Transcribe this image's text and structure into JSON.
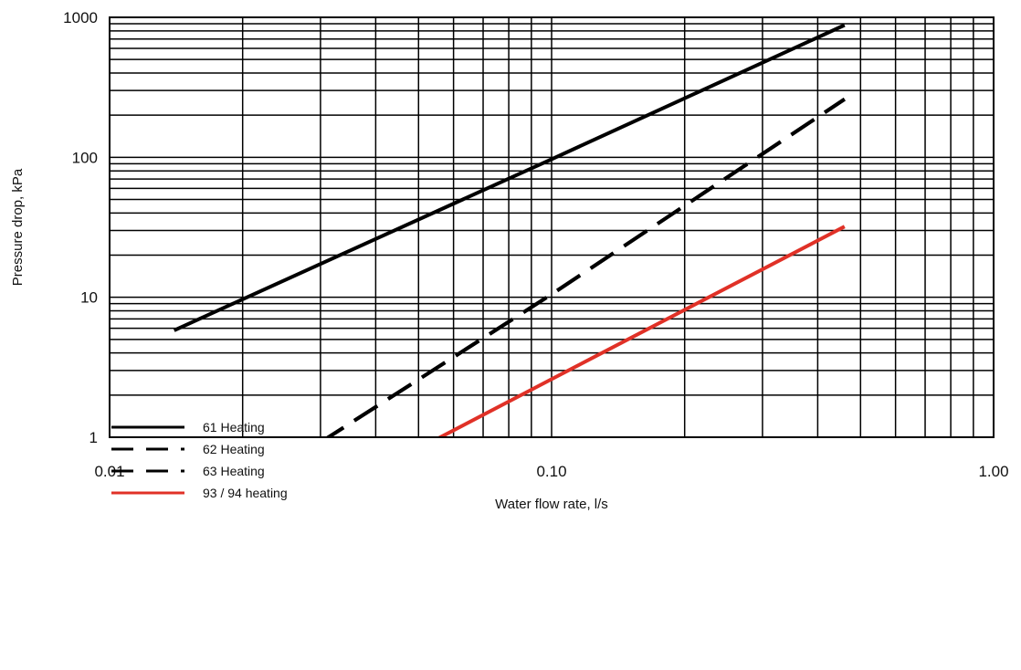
{
  "chart_data": {
    "type": "line",
    "xscale": "log",
    "yscale": "log",
    "xlim": [
      0.01,
      1.0
    ],
    "ylim": [
      1,
      1000
    ],
    "xlabel": "Water flow rate, l/s",
    "ylabel": "Pressure drop, kPa",
    "xticks": [
      {
        "value": 0.01,
        "label": "0.01"
      },
      {
        "value": 0.1,
        "label": "0.10"
      },
      {
        "value": 1.0,
        "label": "1.00"
      }
    ],
    "yticks": [
      {
        "value": 1,
        "label": "1"
      },
      {
        "value": 10,
        "label": "10"
      },
      {
        "value": 100,
        "label": "100"
      },
      {
        "value": 1000,
        "label": "1000"
      }
    ],
    "grid": true,
    "legend_position": "bottom-left",
    "series": [
      {
        "name": "61 Heating",
        "color": "#000000",
        "style": "solid",
        "x": [
          0.014,
          0.1,
          0.46
        ],
        "y": [
          5.8,
          97,
          880
        ]
      },
      {
        "name": "62 Heating",
        "color": "#000000",
        "style": "dashed",
        "x": [
          0.03,
          0.1,
          0.46
        ],
        "y": [
          0.92,
          10.5,
          260
        ]
      },
      {
        "name": "63 Heating",
        "color": "#000000",
        "style": "dashed",
        "x": [
          0.03,
          0.1,
          0.46
        ],
        "y": [
          0.92,
          10.5,
          260
        ]
      },
      {
        "name": "93 / 94 heating",
        "color": "#e03127",
        "style": "solid",
        "x": [
          0.055,
          0.1,
          0.46
        ],
        "y": [
          0.97,
          2.6,
          32
        ]
      }
    ]
  }
}
